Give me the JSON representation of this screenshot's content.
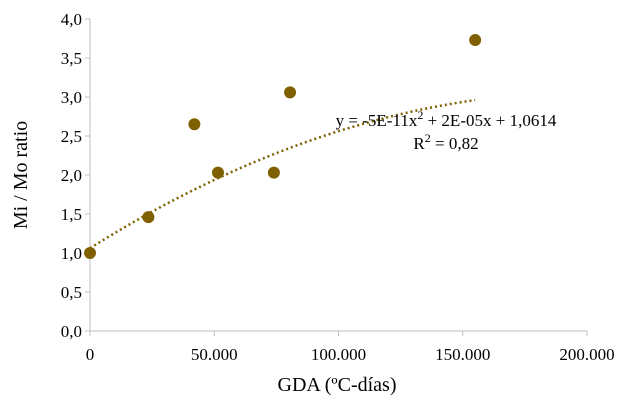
{
  "chart_data": {
    "type": "scatter",
    "xlabel": "GDA (ºC-días)",
    "ylabel": "Mi / Mo ratio",
    "xlim": [
      0,
      200000
    ],
    "ylim": [
      0,
      4
    ],
    "grid": false,
    "x_ticks": [
      0,
      50000,
      100000,
      150000,
      200000
    ],
    "x_tick_labels": [
      "0",
      "50.000",
      "100.000",
      "150.000",
      "200.000"
    ],
    "y_ticks": [
      0,
      0.5,
      1,
      1.5,
      2,
      2.5,
      3,
      3.5,
      4
    ],
    "y_tick_labels": [
      "0,0",
      "0,5",
      "1,0",
      "1,5",
      "2,0",
      "2,5",
      "3,0",
      "3,5",
      "4,0"
    ],
    "series": [
      {
        "x": [
          0,
          23500,
          42000,
          51500,
          74000,
          80500,
          155000
        ],
        "y": [
          1.0,
          1.46,
          2.65,
          2.03,
          2.03,
          3.06,
          3.73
        ]
      }
    ],
    "trendline": {
      "type": "polynomial",
      "order": 2,
      "a": -5e-11,
      "b": 2e-05,
      "c": 1.0614,
      "x_range": [
        0,
        155000
      ],
      "equation_prefix": "y = -5E-11x",
      "equation_sup": "2",
      "equation_suffix": " + 2E-05x + 1,0614",
      "r2_prefix": "R",
      "r2_sup": "2",
      "r2_suffix": " = 0,82"
    },
    "colors": {
      "marker": "#7f6000",
      "trendline": "#7f6000",
      "axis": "#bfbfbf",
      "text": "#000000"
    }
  }
}
